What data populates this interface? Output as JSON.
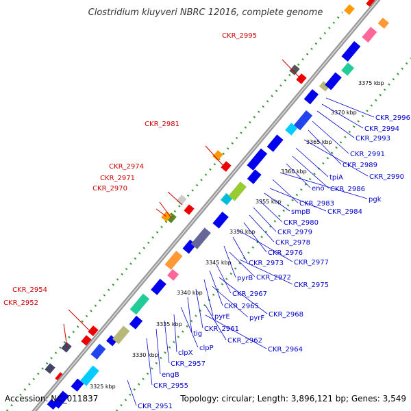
{
  "title": "Clostridium kluyveri NBRC 12016, complete genome",
  "footer": {
    "accession": "Accession: NC_011837",
    "topology": "Topology: circular; Length: 3,896,121 bp; Genes: 3,549"
  },
  "colors": {
    "minus_strand_label": "#cc0000",
    "plus_strand_label": "#0000cc",
    "genome_backbone": "#999999",
    "forward_gene": "#0000ee",
    "reverse_gene": "#ee0000",
    "dotted_track": "#339933"
  },
  "kbp_ticks": [
    "3325 kbp",
    "3330 kbp",
    "3335 kbp",
    "3340 kbp",
    "3345 kbp",
    "3350 kbp",
    "3355 kbp",
    "3360 kbp",
    "3365 kbp",
    "3370 kbp",
    "3375 kbp"
  ],
  "labels_minus": [
    "CKR_2995",
    "CKR_2981",
    "CKR_2974",
    "CKR_2971",
    "CKR_2970",
    "CKR_2954",
    "CKR_2952"
  ],
  "labels_plus": [
    "CKR_2996",
    "CKR_2994",
    "CKR_2993",
    "CKR_2991",
    "CKR_2989",
    "CKR_2990",
    "tpiA",
    "CKR_2986",
    "eno",
    "pgk",
    "CKR_2983",
    "CKR_2984",
    "smpB",
    "CKR_2980",
    "CKR_2979",
    "CKR_2978",
    "CKR_2976",
    "CKR_2977",
    "CKR_2973",
    "pyrB",
    "CKR_2972",
    "CKR_2975",
    "CKR_2967",
    "CKR_2965",
    "pyrE",
    "pyrF",
    "CKR_2968",
    "CKR_2961",
    "tig",
    "CKR_2962",
    "clpP",
    "CKR_2964",
    "clpX",
    "CKR_2957",
    "engB",
    "CKR_2955",
    "CKR_2951"
  ]
}
